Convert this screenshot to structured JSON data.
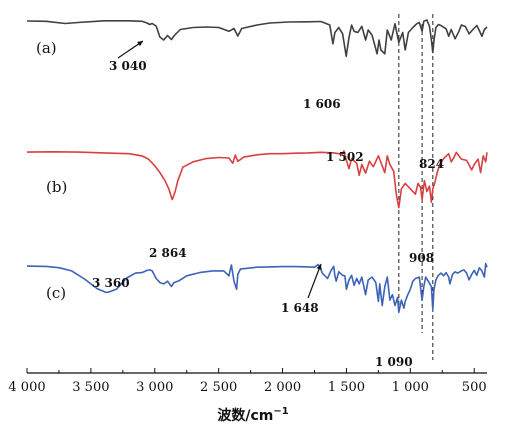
{
  "chart_data": {
    "type": "line",
    "title": "",
    "xlabel": "波数/cm",
    "xlabel_sup": "−1",
    "ylabel": "",
    "xlim": [
      4000,
      400
    ],
    "x_reversed": true,
    "x_ticks": [
      4000,
      3500,
      3000,
      2500,
      2000,
      1500,
      1000,
      500
    ],
    "x_tick_labels": [
      "4 000",
      "3 500",
      "3 000",
      "2 500",
      "2 000",
      "1 500",
      "1 000",
      "500"
    ],
    "grid": false,
    "legend": "none",
    "reference_lines": [
      1090,
      908,
      824
    ],
    "series": [
      {
        "label": "(a)",
        "color": "#404040",
        "points": [
          [
            4000,
            0.96
          ],
          [
            3850,
            0.95
          ],
          [
            3700,
            0.86
          ],
          [
            3600,
            0.9
          ],
          [
            3400,
            0.97
          ],
          [
            3200,
            0.97
          ],
          [
            3100,
            0.95
          ],
          [
            3060,
            0.88
          ],
          [
            3040,
            0.82
          ],
          [
            3020,
            0.86
          ],
          [
            2990,
            0.76
          ],
          [
            2960,
            0.32
          ],
          [
            2930,
            0.2
          ],
          [
            2900,
            0.38
          ],
          [
            2870,
            0.22
          ],
          [
            2850,
            0.36
          ],
          [
            2800,
            0.62
          ],
          [
            2700,
            0.7
          ],
          [
            2600,
            0.72
          ],
          [
            2500,
            0.7
          ],
          [
            2420,
            0.55
          ],
          [
            2380,
            0.66
          ],
          [
            2350,
            0.36
          ],
          [
            2320,
            0.66
          ],
          [
            2200,
            0.8
          ],
          [
            2100,
            0.88
          ],
          [
            1950,
            0.92
          ],
          [
            1800,
            0.93
          ],
          [
            1700,
            0.94
          ],
          [
            1630,
            0.8
          ],
          [
            1606,
            0.05
          ],
          [
            1590,
            0.5
          ],
          [
            1560,
            0.7
          ],
          [
            1530,
            0.45
          ],
          [
            1502,
            -0.45
          ],
          [
            1480,
            0.3
          ],
          [
            1460,
            0.8
          ],
          [
            1440,
            0.55
          ],
          [
            1410,
            0.5
          ],
          [
            1380,
            0.75
          ],
          [
            1350,
            0.2
          ],
          [
            1330,
            0.6
          ],
          [
            1300,
            0.4
          ],
          [
            1260,
            -0.35
          ],
          [
            1245,
            0.2
          ],
          [
            1230,
            -0.2
          ],
          [
            1200,
            -0.35
          ],
          [
            1180,
            0.6
          ],
          [
            1150,
            0.2
          ],
          [
            1120,
            0.85
          ],
          [
            1090,
            0.1
          ],
          [
            1060,
            0.5
          ],
          [
            1040,
            -0.2
          ],
          [
            1015,
            0.5
          ],
          [
            980,
            0.7
          ],
          [
            950,
            0.85
          ],
          [
            930,
            0.9
          ],
          [
            908,
            0.55
          ],
          [
            895,
            0.95
          ],
          [
            870,
            1.0
          ],
          [
            850,
            0.75
          ],
          [
            835,
            0.2
          ],
          [
            824,
            -0.3
          ],
          [
            815,
            0.2
          ],
          [
            800,
            0.7
          ],
          [
            780,
            0.82
          ],
          [
            760,
            0.78
          ],
          [
            720,
            0.65
          ],
          [
            700,
            0.35
          ],
          [
            680,
            0.62
          ],
          [
            650,
            0.25
          ],
          [
            620,
            0.55
          ],
          [
            600,
            0.8
          ],
          [
            570,
            0.74
          ],
          [
            540,
            0.45
          ],
          [
            510,
            0.62
          ],
          [
            480,
            0.78
          ],
          [
            460,
            0.58
          ],
          [
            440,
            0.35
          ],
          [
            420,
            0.62
          ],
          [
            400,
            0.72
          ]
        ]
      },
      {
        "label": "(b)",
        "color": "#d94040",
        "points": [
          [
            4000,
            0.96
          ],
          [
            3800,
            0.97
          ],
          [
            3600,
            0.96
          ],
          [
            3400,
            0.93
          ],
          [
            3200,
            0.9
          ],
          [
            3100,
            0.82
          ],
          [
            3050,
            0.7
          ],
          [
            3000,
            0.45
          ],
          [
            2960,
            0.2
          ],
          [
            2920,
            -0.1
          ],
          [
            2890,
            -0.4
          ],
          [
            2864,
            -0.8
          ],
          [
            2840,
            -0.5
          ],
          [
            2820,
            -0.1
          ],
          [
            2780,
            0.4
          ],
          [
            2700,
            0.6
          ],
          [
            2600,
            0.72
          ],
          [
            2500,
            0.76
          ],
          [
            2420,
            0.74
          ],
          [
            2390,
            0.55
          ],
          [
            2370,
            0.85
          ],
          [
            2350,
            0.62
          ],
          [
            2300,
            0.78
          ],
          [
            2200,
            0.86
          ],
          [
            2100,
            0.9
          ],
          [
            2000,
            0.9
          ],
          [
            1900,
            0.92
          ],
          [
            1800,
            0.93
          ],
          [
            1700,
            0.95
          ],
          [
            1600,
            0.93
          ],
          [
            1530,
            0.88
          ],
          [
            1520,
            1.0
          ],
          [
            1500,
            0.65
          ],
          [
            1480,
            0.35
          ],
          [
            1460,
            0.72
          ],
          [
            1420,
            0.55
          ],
          [
            1400,
            0.1
          ],
          [
            1380,
            0.5
          ],
          [
            1350,
            0.18
          ],
          [
            1320,
            0.62
          ],
          [
            1290,
            0.42
          ],
          [
            1250,
            0.82
          ],
          [
            1220,
            0.45
          ],
          [
            1200,
            0.2
          ],
          [
            1180,
            0.82
          ],
          [
            1160,
            0.5
          ],
          [
            1130,
            0.25
          ],
          [
            1110,
            -0.6
          ],
          [
            1090,
            -1.1
          ],
          [
            1070,
            -0.4
          ],
          [
            1040,
            -0.2
          ],
          [
            1000,
            -0.4
          ],
          [
            960,
            -0.6
          ],
          [
            940,
            -0.2
          ],
          [
            920,
            -0.35
          ],
          [
            908,
            -0.8
          ],
          [
            890,
            -0.1
          ],
          [
            870,
            -0.5
          ],
          [
            850,
            -0.3
          ],
          [
            835,
            -0.9
          ],
          [
            824,
            -0.4
          ],
          [
            810,
            -0.2
          ],
          [
            790,
            0.2
          ],
          [
            770,
            0.5
          ],
          [
            740,
            0.72
          ],
          [
            700,
            0.9
          ],
          [
            680,
            0.6
          ],
          [
            660,
            0.75
          ],
          [
            640,
            0.95
          ],
          [
            600,
            0.7
          ],
          [
            560,
            0.65
          ],
          [
            520,
            0.3
          ],
          [
            500,
            0.5
          ],
          [
            470,
            0.7
          ],
          [
            450,
            0.2
          ],
          [
            430,
            0.82
          ],
          [
            410,
            0.6
          ],
          [
            400,
            0.95
          ]
        ]
      },
      {
        "label": "(c)",
        "color": "#3d63b8",
        "points": [
          [
            4000,
            0.96
          ],
          [
            3850,
            0.95
          ],
          [
            3750,
            0.9
          ],
          [
            3650,
            0.78
          ],
          [
            3550,
            0.48
          ],
          [
            3450,
            0.12
          ],
          [
            3380,
            -0.02
          ],
          [
            3360,
            0.0
          ],
          [
            3300,
            0.1
          ],
          [
            3220,
            0.52
          ],
          [
            3150,
            0.7
          ],
          [
            3100,
            0.72
          ],
          [
            3060,
            0.8
          ],
          [
            3040,
            0.82
          ],
          [
            3020,
            0.78
          ],
          [
            2990,
            0.5
          ],
          [
            2960,
            0.35
          ],
          [
            2930,
            0.3
          ],
          [
            2900,
            0.4
          ],
          [
            2870,
            0.2
          ],
          [
            2850,
            0.35
          ],
          [
            2810,
            0.42
          ],
          [
            2750,
            0.6
          ],
          [
            2650,
            0.72
          ],
          [
            2550,
            0.78
          ],
          [
            2460,
            0.78
          ],
          [
            2420,
            0.6
          ],
          [
            2400,
            1.0
          ],
          [
            2380,
            0.4
          ],
          [
            2360,
            0.1
          ],
          [
            2350,
            0.65
          ],
          [
            2330,
            0.85
          ],
          [
            2200,
            0.92
          ],
          [
            2100,
            0.93
          ],
          [
            2000,
            0.94
          ],
          [
            1900,
            0.94
          ],
          [
            1800,
            0.93
          ],
          [
            1750,
            0.92
          ],
          [
            1720,
            1.02
          ],
          [
            1700,
            0.85
          ],
          [
            1690,
            0.7
          ],
          [
            1648,
            0.5
          ],
          [
            1620,
            0.8
          ],
          [
            1600,
            0.95
          ],
          [
            1590,
            0.6
          ],
          [
            1580,
            0.4
          ],
          [
            1560,
            0.75
          ],
          [
            1530,
            0.62
          ],
          [
            1512,
            0.6
          ],
          [
            1500,
            0.1
          ],
          [
            1480,
            0.45
          ],
          [
            1460,
            0.62
          ],
          [
            1440,
            0.25
          ],
          [
            1420,
            0.5
          ],
          [
            1400,
            0.3
          ],
          [
            1380,
            0.55
          ],
          [
            1350,
            -0.1
          ],
          [
            1330,
            0.45
          ],
          [
            1300,
            0.55
          ],
          [
            1270,
            0.35
          ],
          [
            1250,
            -0.35
          ],
          [
            1240,
            0.3
          ],
          [
            1220,
            -0.5
          ],
          [
            1200,
            0.2
          ],
          [
            1180,
            0.55
          ],
          [
            1160,
            -0.3
          ],
          [
            1140,
            -0.1
          ],
          [
            1120,
            -0.5
          ],
          [
            1100,
            -0.2
          ],
          [
            1090,
            -0.75
          ],
          [
            1070,
            -0.3
          ],
          [
            1050,
            -0.6
          ],
          [
            1040,
            -0.35
          ],
          [
            1020,
            -0.1
          ],
          [
            1000,
            0.1
          ],
          [
            980,
            0.4
          ],
          [
            960,
            0.5
          ],
          [
            930,
            0.55
          ],
          [
            908,
            -0.3
          ],
          [
            895,
            0.2
          ],
          [
            880,
            0.55
          ],
          [
            860,
            0.4
          ],
          [
            835,
            0.2
          ],
          [
            824,
            -0.65
          ],
          [
            815,
            0.1
          ],
          [
            800,
            0.45
          ],
          [
            780,
            0.62
          ],
          [
            760,
            0.7
          ],
          [
            740,
            0.6
          ],
          [
            720,
            0.72
          ],
          [
            700,
            0.55
          ],
          [
            690,
            0.3
          ],
          [
            670,
            0.65
          ],
          [
            650,
            0.75
          ],
          [
            630,
            0.7
          ],
          [
            600,
            0.78
          ],
          [
            580,
            0.82
          ],
          [
            560,
            0.7
          ],
          [
            540,
            0.45
          ],
          [
            520,
            0.65
          ],
          [
            500,
            0.8
          ],
          [
            480,
            0.62
          ],
          [
            460,
            0.9
          ],
          [
            440,
            0.78
          ],
          [
            420,
            0.55
          ],
          [
            410,
            1.05
          ],
          [
            400,
            0.92
          ]
        ]
      }
    ],
    "annotations": [
      {
        "text": "3 040",
        "series": 0
      },
      {
        "text": "1 606",
        "series": 0
      },
      {
        "text": "1 502",
        "series": 0
      },
      {
        "text": "824",
        "series": 0
      },
      {
        "text": "2 864",
        "series": 1
      },
      {
        "text": "908",
        "series": 1
      },
      {
        "text": "3 360",
        "series": 2
      },
      {
        "text": "1 648",
        "series": 2
      },
      {
        "text": "1 090",
        "series": 2
      }
    ]
  }
}
